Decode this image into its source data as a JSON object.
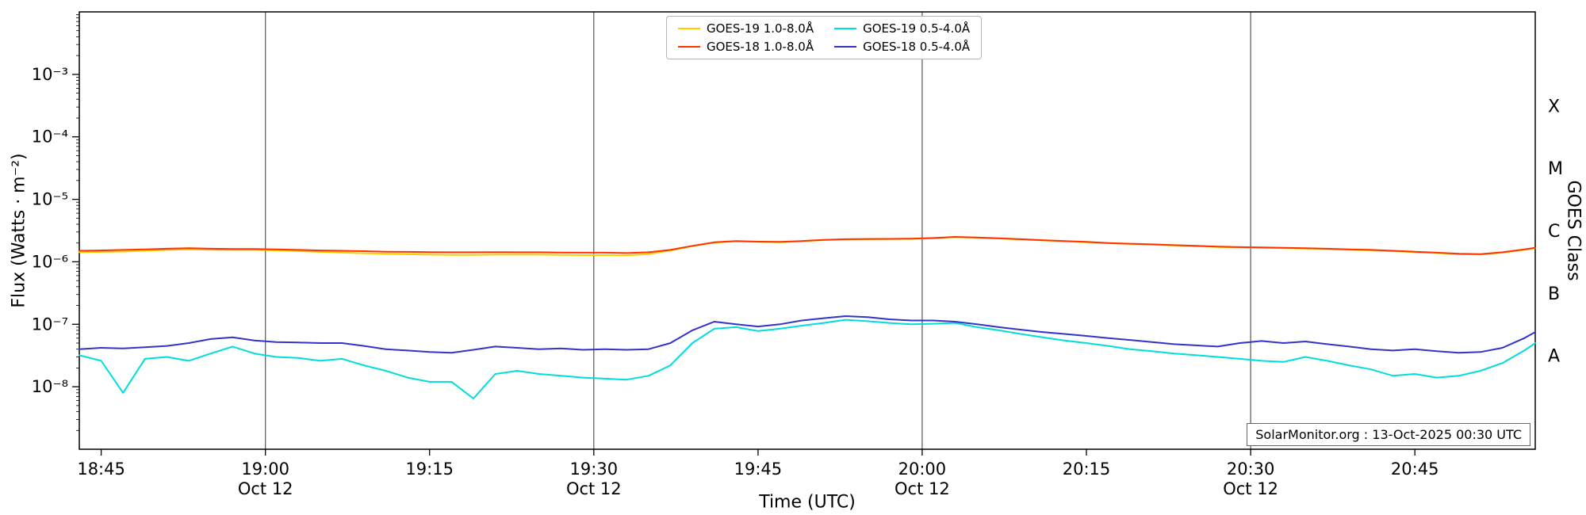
{
  "annotation": "SolarMonitor.org : 13-Oct-2025 00:30 UTC",
  "chart_data": {
    "type": "line",
    "xlabel": "Time (UTC)",
    "ylabel": "Flux (Watts · m⁻²)",
    "ylabel_right": "GOES Class",
    "x_unit": "minutes after 18:00 UTC on 12-Oct-2025",
    "xlim": [
      43,
      176
    ],
    "ylim_log10": [
      -9,
      -2
    ],
    "legend_position": "top-center",
    "grid": "vertical lines at 30-min date ticks",
    "colors": {
      "frame": "#000000",
      "grid": "#555555"
    },
    "x_ticks": [
      {
        "m": 45,
        "label": "18:45",
        "sub": ""
      },
      {
        "m": 60,
        "label": "19:00",
        "sub": "Oct 12"
      },
      {
        "m": 75,
        "label": "19:15",
        "sub": ""
      },
      {
        "m": 90,
        "label": "19:30",
        "sub": "Oct 12"
      },
      {
        "m": 105,
        "label": "19:45",
        "sub": ""
      },
      {
        "m": 120,
        "label": "20:00",
        "sub": "Oct 12"
      },
      {
        "m": 135,
        "label": "20:15",
        "sub": ""
      },
      {
        "m": 150,
        "label": "20:30",
        "sub": "Oct 12"
      },
      {
        "m": 165,
        "label": "20:45",
        "sub": ""
      }
    ],
    "gridlines_x": [
      60,
      90,
      120,
      150
    ],
    "y_ticks": [
      {
        "log10": -3,
        "label": "10⁻³"
      },
      {
        "log10": -4,
        "label": "10⁻⁴"
      },
      {
        "log10": -5,
        "label": "10⁻⁵"
      },
      {
        "log10": -6,
        "label": "10⁻⁶"
      },
      {
        "log10": -7,
        "label": "10⁻⁷"
      },
      {
        "log10": -8,
        "label": "10⁻⁸"
      }
    ],
    "right_class_labels": [
      {
        "label": "X",
        "log10": -3.5
      },
      {
        "label": "M",
        "log10": -4.5
      },
      {
        "label": "C",
        "log10": -5.5
      },
      {
        "label": "B",
        "log10": -6.5
      },
      {
        "label": "A",
        "log10": -7.5
      }
    ],
    "x": [
      43,
      45,
      47,
      49,
      51,
      53,
      55,
      57,
      59,
      61,
      63,
      65,
      67,
      69,
      71,
      73,
      75,
      77,
      79,
      81,
      83,
      85,
      87,
      89,
      91,
      93,
      95,
      97,
      99,
      101,
      103,
      105,
      107,
      109,
      111,
      113,
      115,
      117,
      119,
      121,
      123,
      125,
      127,
      129,
      131,
      133,
      135,
      137,
      139,
      141,
      143,
      145,
      147,
      149,
      151,
      153,
      155,
      157,
      159,
      161,
      163,
      165,
      167,
      169,
      171,
      173,
      175,
      176
    ],
    "series": [
      {
        "id": "goes19-long",
        "name": "GOES-19 1.0-8.0Å",
        "color": "#ffcc00",
        "values": [
          1.42e-06,
          1.44e-06,
          1.46e-06,
          1.5e-06,
          1.55e-06,
          1.58e-06,
          1.56e-06,
          1.55e-06,
          1.55e-06,
          1.52e-06,
          1.48e-06,
          1.44e-06,
          1.4e-06,
          1.37e-06,
          1.34e-06,
          1.32e-06,
          1.3e-06,
          1.29e-06,
          1.29e-06,
          1.3e-06,
          1.3e-06,
          1.3e-06,
          1.29e-06,
          1.28e-06,
          1.28e-06,
          1.27e-06,
          1.33e-06,
          1.52e-06,
          1.78e-06,
          2.03e-06,
          2.13e-06,
          2.08e-06,
          2.06e-06,
          2.13e-06,
          2.23e-06,
          2.28e-06,
          2.3e-06,
          2.31e-06,
          2.33e-06,
          2.38e-06,
          2.48e-06,
          2.43e-06,
          2.36e-06,
          2.28e-06,
          2.2e-06,
          2.13e-06,
          2.06e-06,
          1.98e-06,
          1.93e-06,
          1.88e-06,
          1.83e-06,
          1.78e-06,
          1.73e-06,
          1.7e-06,
          1.68e-06,
          1.66e-06,
          1.63e-06,
          1.6e-06,
          1.56e-06,
          1.53e-06,
          1.48e-06,
          1.43e-06,
          1.38e-06,
          1.33e-06,
          1.31e-06,
          1.4e-06,
          1.56e-06,
          1.66e-06
        ]
      },
      {
        "id": "goes18-long",
        "name": "GOES-18 1.0-8.0Å",
        "color": "#ff3300",
        "values": [
          1.5e-06,
          1.52e-06,
          1.55e-06,
          1.58e-06,
          1.62e-06,
          1.65e-06,
          1.62e-06,
          1.6e-06,
          1.6e-06,
          1.58e-06,
          1.55e-06,
          1.52e-06,
          1.5e-06,
          1.48e-06,
          1.45e-06,
          1.44e-06,
          1.43e-06,
          1.42e-06,
          1.42e-06,
          1.43e-06,
          1.42e-06,
          1.42e-06,
          1.41e-06,
          1.4e-06,
          1.4e-06,
          1.38e-06,
          1.42e-06,
          1.55e-06,
          1.8e-06,
          2.05e-06,
          2.15e-06,
          2.1e-06,
          2.08e-06,
          2.15e-06,
          2.25e-06,
          2.3e-06,
          2.32e-06,
          2.33e-06,
          2.35e-06,
          2.4e-06,
          2.5e-06,
          2.45e-06,
          2.38e-06,
          2.3e-06,
          2.22e-06,
          2.15e-06,
          2.08e-06,
          2e-06,
          1.95e-06,
          1.9e-06,
          1.85e-06,
          1.8e-06,
          1.75e-06,
          1.72e-06,
          1.7e-06,
          1.68e-06,
          1.65e-06,
          1.62e-06,
          1.58e-06,
          1.55e-06,
          1.5e-06,
          1.45e-06,
          1.4e-06,
          1.35e-06,
          1.33e-06,
          1.42e-06,
          1.58e-06,
          1.68e-06
        ]
      },
      {
        "id": "goes19-short",
        "name": "GOES-19 0.5-4.0Å",
        "color": "#00dddd",
        "values": [
          3.2e-08,
          2.6e-08,
          8e-09,
          2.8e-08,
          3e-08,
          2.6e-08,
          3.4e-08,
          4.4e-08,
          3.4e-08,
          3e-08,
          2.9e-08,
          2.6e-08,
          2.8e-08,
          2.2e-08,
          1.8e-08,
          1.4e-08,
          1.2e-08,
          1.2e-08,
          6.5e-09,
          1.6e-08,
          1.8e-08,
          1.6e-08,
          1.5e-08,
          1.4e-08,
          1.35e-08,
          1.3e-08,
          1.5e-08,
          2.2e-08,
          5e-08,
          8.5e-08,
          9e-08,
          7.8e-08,
          8.5e-08,
          9.5e-08,
          1.05e-07,
          1.18e-07,
          1.12e-07,
          1.05e-07,
          1e-07,
          1.02e-07,
          1.05e-07,
          9e-08,
          8e-08,
          7e-08,
          6.2e-08,
          5.5e-08,
          5e-08,
          4.5e-08,
          4e-08,
          3.7e-08,
          3.4e-08,
          3.2e-08,
          3e-08,
          2.8e-08,
          2.6e-08,
          2.5e-08,
          3e-08,
          2.6e-08,
          2.2e-08,
          1.9e-08,
          1.5e-08,
          1.6e-08,
          1.4e-08,
          1.5e-08,
          1.8e-08,
          2.4e-08,
          3.8e-08,
          5e-08
        ]
      },
      {
        "id": "goes18-short",
        "name": "GOES-18 0.5-4.0Å",
        "color": "#3333cc",
        "values": [
          4e-08,
          4.2e-08,
          4.1e-08,
          4.3e-08,
          4.5e-08,
          5e-08,
          5.8e-08,
          6.2e-08,
          5.5e-08,
          5.2e-08,
          5.1e-08,
          5e-08,
          5e-08,
          4.5e-08,
          4e-08,
          3.8e-08,
          3.6e-08,
          3.5e-08,
          3.9e-08,
          4.4e-08,
          4.2e-08,
          4e-08,
          4.1e-08,
          3.9e-08,
          4e-08,
          3.9e-08,
          4e-08,
          5e-08,
          8e-08,
          1.1e-07,
          1e-07,
          9.2e-08,
          1e-07,
          1.15e-07,
          1.25e-07,
          1.35e-07,
          1.3e-07,
          1.2e-07,
          1.15e-07,
          1.15e-07,
          1.1e-07,
          1e-07,
          9e-08,
          8.2e-08,
          7.5e-08,
          7e-08,
          6.5e-08,
          6e-08,
          5.6e-08,
          5.2e-08,
          4.8e-08,
          4.6e-08,
          4.4e-08,
          5e-08,
          5.4e-08,
          5e-08,
          5.3e-08,
          4.8e-08,
          4.4e-08,
          4e-08,
          3.8e-08,
          4e-08,
          3.7e-08,
          3.5e-08,
          3.6e-08,
          4.2e-08,
          6e-08,
          7.5e-08
        ]
      }
    ]
  }
}
